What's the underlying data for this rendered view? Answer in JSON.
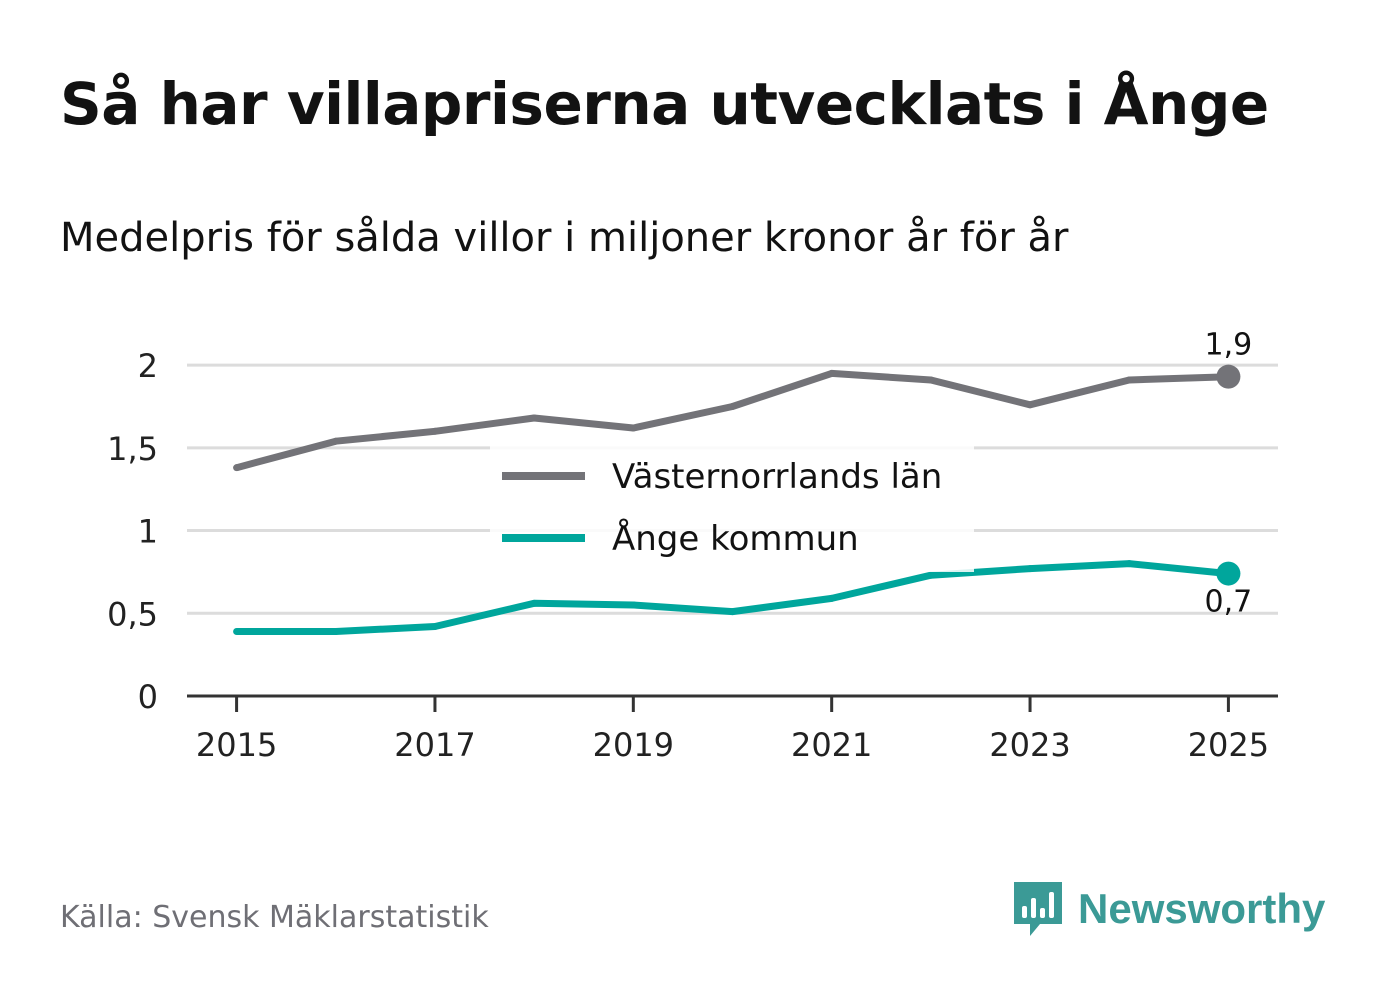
{
  "header": {
    "title": "Så har villapriserna utvecklats i Ånge",
    "subtitle": "Medelpris för sålda villor i miljoner kronor år för år"
  },
  "footer": {
    "source": "Källa: Svensk Mäklarstatistik",
    "brand": "Newsworthy",
    "brand_icon": "chart-bubble-icon"
  },
  "colors": {
    "county": "#737378",
    "municipality": "#00a69c",
    "grid": "#dcdcdc",
    "axis": "#333333",
    "brand": "#3b9a96"
  },
  "chart_data": {
    "type": "line",
    "title": "Så har villapriserna utvecklats i Ånge",
    "subtitle": "Medelpris för sålda villor i miljoner kronor år för år",
    "x": [
      2015,
      2016,
      2017,
      2018,
      2019,
      2020,
      2021,
      2022,
      2023,
      2024,
      2025
    ],
    "x_ticks": [
      2015,
      2017,
      2019,
      2021,
      2023,
      2025
    ],
    "x_tick_labels": [
      "2015",
      "2017",
      "2019",
      "2021",
      "2023",
      "2025"
    ],
    "y_ticks": [
      0,
      0.5,
      1,
      1.5,
      2
    ],
    "y_tick_labels": [
      "0",
      "0,5",
      "1",
      "1,5",
      "2"
    ],
    "ylim": [
      0,
      2.2
    ],
    "xlim": [
      2014.5,
      2025.5
    ],
    "grid": true,
    "legend_position": "center",
    "series": [
      {
        "name": "Västernorrlands län",
        "color": "#737378",
        "values": [
          1.38,
          1.54,
          1.6,
          1.68,
          1.62,
          1.75,
          1.95,
          1.91,
          1.76,
          1.91,
          1.93
        ],
        "end_label": "1,9",
        "end_label_position": "above"
      },
      {
        "name": "Ånge kommun",
        "color": "#00a69c",
        "values": [
          0.39,
          0.39,
          0.42,
          0.56,
          0.55,
          0.51,
          0.59,
          0.73,
          0.77,
          0.8,
          0.74
        ],
        "end_label": "0,7",
        "end_label_position": "below"
      }
    ]
  }
}
